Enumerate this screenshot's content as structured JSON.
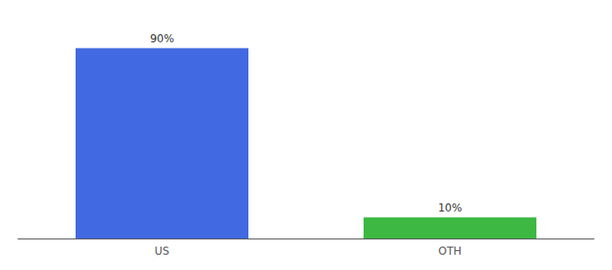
{
  "chart_data": {
    "type": "bar",
    "categories": [
      "US",
      "OTH"
    ],
    "values": [
      90,
      10
    ],
    "value_labels": [
      "90%",
      "10%"
    ],
    "colors": [
      "#4169E1",
      "#3CB843"
    ],
    "ylim": [
      0,
      100
    ],
    "data_labels": true,
    "tick_labels": "x",
    "grid": false
  }
}
